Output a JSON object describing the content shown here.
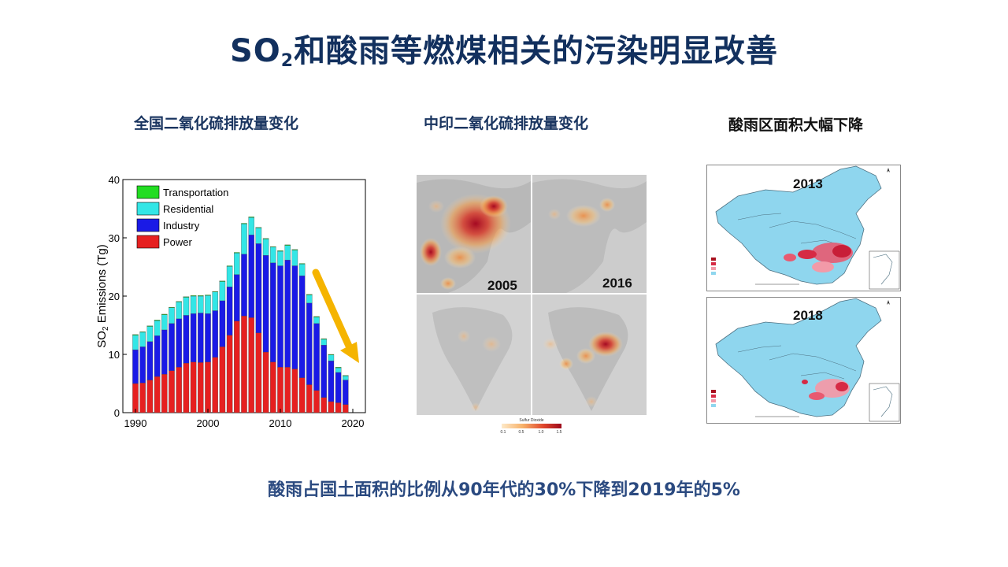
{
  "slide": {
    "title_main": "SO",
    "title_sub": "2",
    "title_rest": "和酸雨等燃煤相关的污染明显改善",
    "left_heading": "全国二氧化硫排放量变化",
    "mid_heading": "中印二氧化硫排放量变化",
    "right_heading": "酸雨区面积大幅下降",
    "footer": "酸雨占国土面积的比例从90年代的30%下降到2019年的5%"
  },
  "maps_mid": {
    "year_top_right_left": "2005",
    "year_top_right": "2016",
    "legend_title": "Sulfur Dioxide",
    "legend_ticks": [
      "0.1",
      "0.5",
      "1.0",
      "1.5"
    ]
  },
  "maps_right": {
    "year_top": "2013",
    "year_bottom": "2018"
  },
  "colors": {
    "transportation": "#22dd22",
    "residential": "#33e6e6",
    "industry": "#1a1ae6",
    "power": "#e62020",
    "arrow": "#f5b400",
    "china_fill": "#8fd6ee"
  },
  "chart_data": {
    "type": "bar",
    "stacked": true,
    "ylabel_main": "SO",
    "ylabel_sub": "2",
    "ylabel_rest": " Emissions (Tg)",
    "xlim": [
      1990,
      2020
    ],
    "ylim": [
      0,
      40
    ],
    "xticks": [
      "1990",
      "2000",
      "2010",
      "2020"
    ],
    "yticks": [
      "0",
      "10",
      "20",
      "30",
      "40"
    ],
    "legend_position": "top-left",
    "years": [
      1990,
      1991,
      1992,
      1993,
      1994,
      1995,
      1996,
      1997,
      1998,
      1999,
      2000,
      2001,
      2002,
      2003,
      2004,
      2005,
      2006,
      2007,
      2008,
      2009,
      2010,
      2011,
      2012,
      2013,
      2014,
      2015,
      2016,
      2017,
      2018,
      2019
    ],
    "series": [
      {
        "name": "Power",
        "values": [
          5.0,
          5.1,
          5.6,
          6.2,
          6.6,
          7.2,
          7.8,
          8.5,
          8.7,
          8.6,
          8.7,
          9.5,
          11.3,
          13.3,
          15.7,
          16.6,
          16.3,
          13.7,
          10.4,
          8.7,
          7.8,
          7.8,
          7.5,
          6.0,
          4.8,
          3.8,
          2.6,
          1.9,
          1.7,
          1.4
        ]
      },
      {
        "name": "Industry",
        "values": [
          5.8,
          6.2,
          6.6,
          7.0,
          7.6,
          8.1,
          8.3,
          8.2,
          8.3,
          8.5,
          8.3,
          8.0,
          7.9,
          8.3,
          8.0,
          10.6,
          14.2,
          15.3,
          16.6,
          17.0,
          17.4,
          18.4,
          17.7,
          17.5,
          14.0,
          11.5,
          9.0,
          7.0,
          5.2,
          4.2
        ]
      },
      {
        "name": "Residential",
        "values": [
          2.5,
          2.5,
          2.6,
          2.6,
          2.6,
          2.7,
          2.9,
          3.1,
          3.0,
          2.9,
          3.1,
          3.2,
          3.3,
          3.5,
          3.7,
          5.2,
          3.0,
          2.7,
          2.8,
          2.7,
          2.5,
          2.5,
          2.7,
          2.0,
          1.4,
          1.1,
          1.0,
          1.0,
          0.8,
          0.7
        ]
      },
      {
        "name": "Transportation",
        "values": [
          0.1,
          0.1,
          0.1,
          0.1,
          0.1,
          0.1,
          0.1,
          0.1,
          0.1,
          0.1,
          0.1,
          0.1,
          0.1,
          0.1,
          0.1,
          0.1,
          0.1,
          0.1,
          0.1,
          0.1,
          0.1,
          0.1,
          0.1,
          0.1,
          0.1,
          0.1,
          0.1,
          0.1,
          0.1,
          0.1
        ]
      }
    ]
  }
}
